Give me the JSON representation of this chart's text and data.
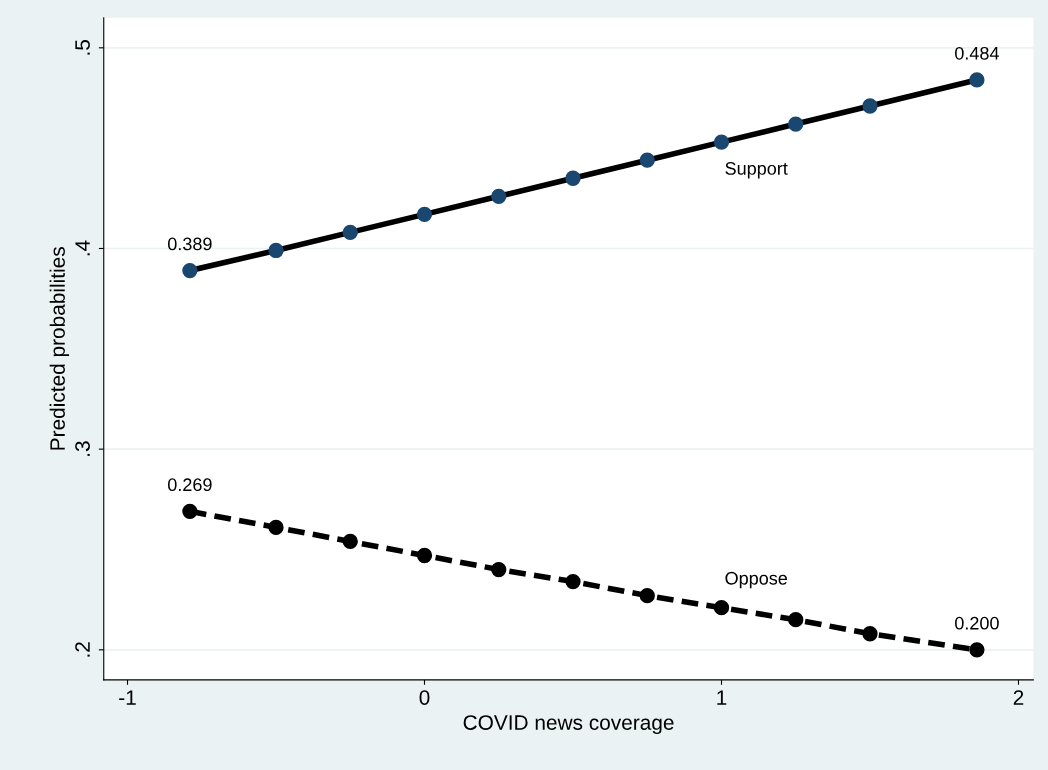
{
  "chart_data": {
    "type": "line",
    "xlabel": "COVID news coverage",
    "ylabel": "Predicted probabilities",
    "xlim": [
      -1.08,
      2.05
    ],
    "xticks": [
      -1,
      0,
      1,
      2
    ],
    "ylim": [
      0.185,
      0.515
    ],
    "yticks": [
      {
        "value": 0.2,
        "label": ".2"
      },
      {
        "value": 0.3,
        "label": ".3"
      },
      {
        "value": 0.4,
        "label": ".4"
      },
      {
        "value": 0.5,
        "label": ".5"
      }
    ],
    "grid": "y",
    "legend": false,
    "marker": "circle",
    "series": [
      {
        "name": "Support",
        "color": "#1a476f",
        "line_style": "solid",
        "x": [
          -0.79,
          -0.5,
          -0.25,
          0,
          0.25,
          0.5,
          0.75,
          1,
          1.25,
          1.5,
          1.86
        ],
        "values": [
          0.389,
          0.399,
          0.408,
          0.417,
          0.426,
          0.435,
          0.444,
          0.453,
          0.462,
          0.471,
          0.484
        ],
        "value_labels": [
          "0.389",
          null,
          null,
          null,
          null,
          null,
          null,
          null,
          null,
          null,
          "0.484"
        ]
      },
      {
        "name": "Oppose",
        "color": "#000000",
        "line_style": "dashed",
        "x": [
          -0.79,
          -0.5,
          -0.25,
          0,
          0.25,
          0.5,
          0.75,
          1,
          1.25,
          1.5,
          1.86
        ],
        "values": [
          0.269,
          0.261,
          0.254,
          0.247,
          0.24,
          0.234,
          0.227,
          0.221,
          0.215,
          0.208,
          0.2
        ],
        "value_labels": [
          "0.269",
          null,
          null,
          null,
          null,
          null,
          null,
          null,
          null,
          null,
          "0.200"
        ]
      }
    ]
  }
}
